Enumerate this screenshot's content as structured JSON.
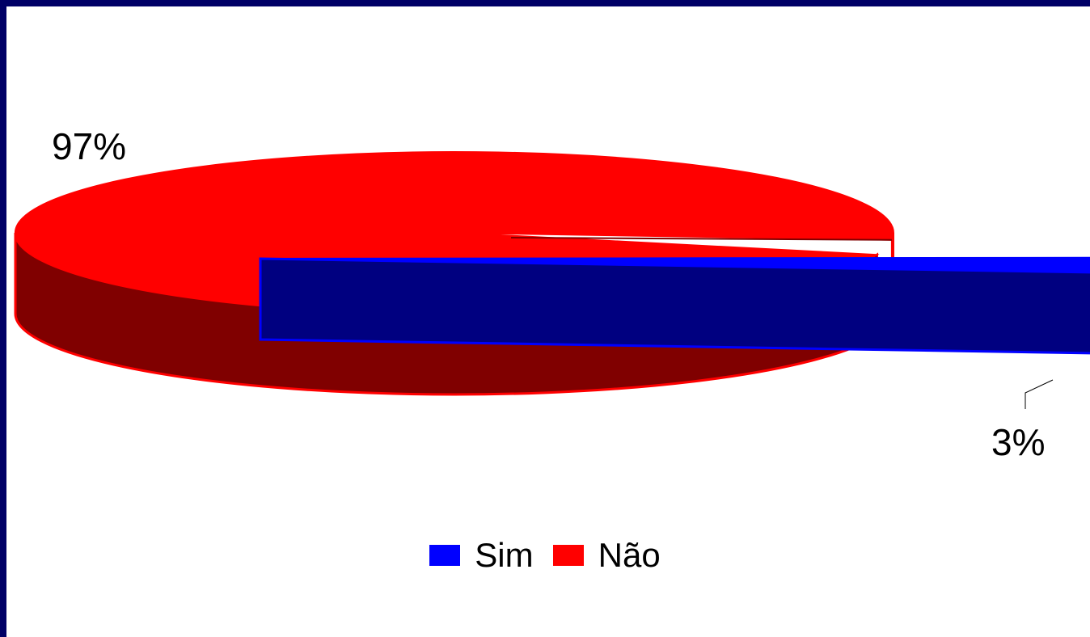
{
  "chart_data": {
    "type": "pie",
    "style": "3d-exploded",
    "series": [
      {
        "name": "Sim",
        "value": 3,
        "label": "3%",
        "color": "#0000ff",
        "exploded": true
      },
      {
        "name": "Não",
        "value": 97,
        "label": "97%",
        "color": "#ff0000",
        "exploded": false
      }
    ],
    "legend_position": "bottom-center"
  },
  "colors": {
    "border": "#000066",
    "background": "#ffffff",
    "sim_side": "#000080",
    "nao_side": "#800000"
  }
}
